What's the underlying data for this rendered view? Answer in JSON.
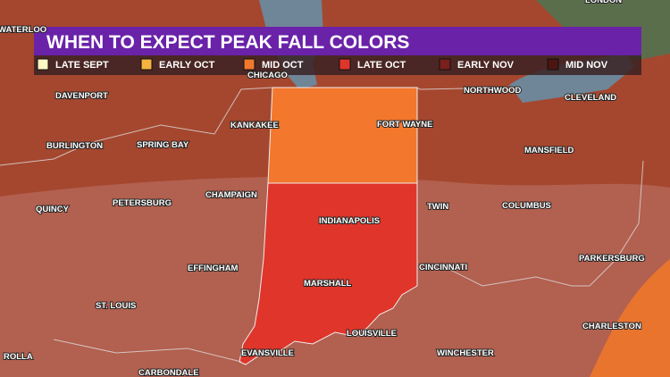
{
  "header": {
    "title": "WHEN TO EXPECT PEAK FALL COLORS"
  },
  "legend": [
    {
      "label": "LATE SEPT",
      "color": "#fdf5c4"
    },
    {
      "label": "EARLY OCT",
      "color": "#f5b33f"
    },
    {
      "label": "MID OCT",
      "color": "#f3772d"
    },
    {
      "label": "LATE OCT",
      "color": "#e0352a"
    },
    {
      "label": "EARLY NOV",
      "color": "#7a1f1c"
    },
    {
      "label": "MID NOV",
      "color": "#4b1512"
    }
  ],
  "cities": [
    "WATERLOO",
    "LONDON",
    "CHICAGO",
    "DAVENPORT",
    "NORTHWOOD",
    "CLEVELAND",
    "KANKAKEE",
    "FORT WAYNE",
    "BURLINGTON",
    "SPRING BAY",
    "MANSFIELD",
    "CHAMPAIGN",
    "PETERSBURG",
    "QUINCY",
    "INDIANAPOLIS",
    "TWIN",
    "COLUMBUS",
    "EFFINGHAM",
    "CINCINNATI",
    "PARKERSBURG",
    "MARSHALL",
    "ST. LOUIS",
    "CHARLESTON",
    "LOUISVILLE",
    "EVANSVILLE",
    "WINCHESTER",
    "ROLLA",
    "CARBONDALE"
  ]
}
